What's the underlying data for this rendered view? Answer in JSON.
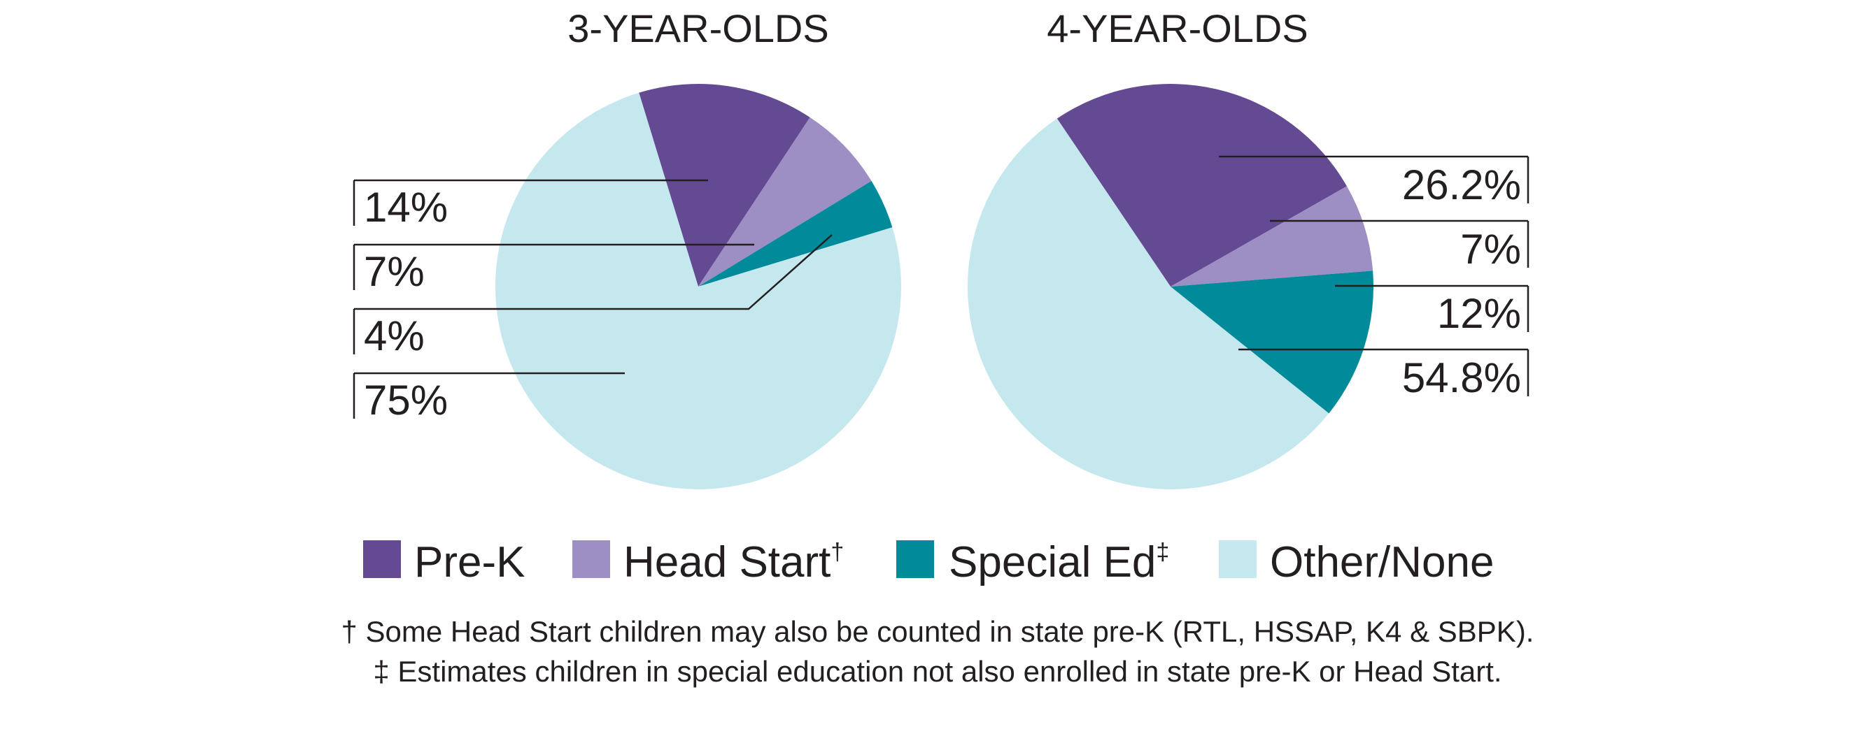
{
  "chart_data": [
    {
      "type": "pie",
      "title": "3-YEAR-OLDS",
      "slices": [
        {
          "label": "Pre-K",
          "value": 14,
          "display": "14%",
          "color": "#644a92"
        },
        {
          "label": "Head Start†",
          "value": 7,
          "display": "7%",
          "color": "#9d8ec4"
        },
        {
          "label": "Special Ed‡",
          "value": 4,
          "display": "4%",
          "color": "#008a9a"
        },
        {
          "label": "Other/None",
          "value": 75,
          "display": "75%",
          "color": "#c5e7ee"
        }
      ]
    },
    {
      "type": "pie",
      "title": "4-YEAR-OLDS",
      "slices": [
        {
          "label": "Pre-K",
          "value": 26.2,
          "display": "26.2%",
          "color": "#644a92"
        },
        {
          "label": "Head Start†",
          "value": 7,
          "display": "7%",
          "color": "#9d8ec4"
        },
        {
          "label": "Special Ed‡",
          "value": 12,
          "display": "12%",
          "color": "#008a9a"
        },
        {
          "label": "Other/None",
          "value": 54.8,
          "display": "54.8%",
          "color": "#c5e7ee"
        }
      ]
    }
  ],
  "legend": [
    {
      "name": "Pre-K",
      "sup": "",
      "color": "#644a92"
    },
    {
      "name": "Head Start",
      "sup": "†",
      "color": "#9d8ec4"
    },
    {
      "name": "Special Ed",
      "sup": "‡",
      "color": "#008a9a"
    },
    {
      "name": "Other/None",
      "sup": "",
      "color": "#c5e7ee"
    }
  ],
  "footnotes": [
    "† Some Head Start children may also be counted in state pre-K (RTL, HSSAP, K4 & SBPK).",
    "‡ Estimates children in special education not also enrolled in state pre-K or Head Start."
  ]
}
